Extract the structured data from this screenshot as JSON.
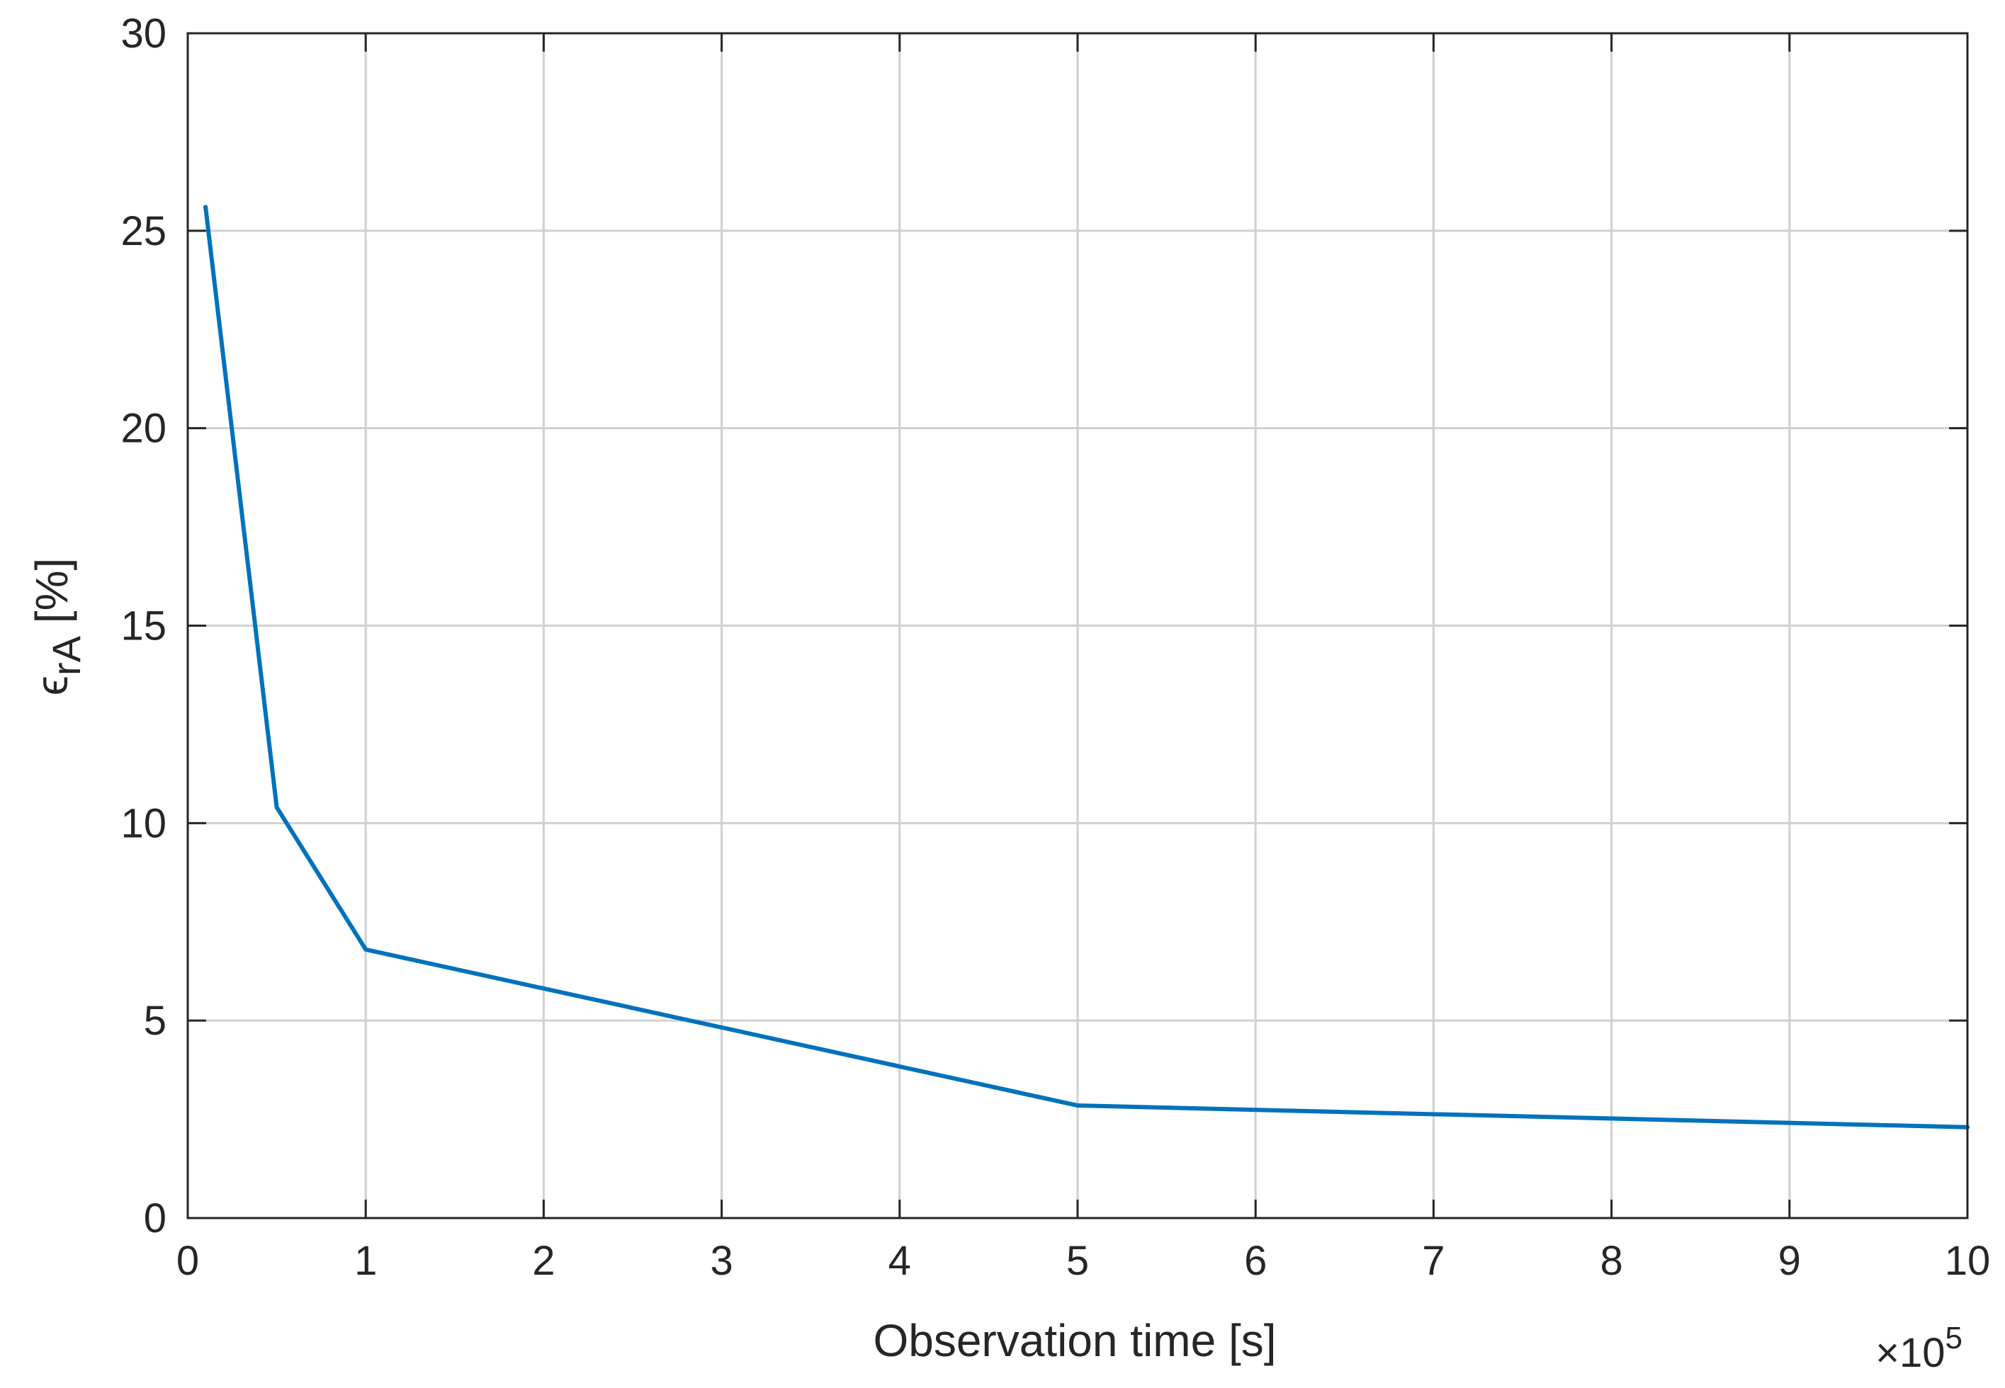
{
  "chart_data": {
    "type": "line",
    "title": "",
    "xlabel": "Observation time [s]",
    "ylabel_base": "ϵ",
    "ylabel_sub": "rA",
    "ylabel_suffix": " [%]",
    "x_exponent_label": "×10",
    "x_exponent": "5",
    "x_multiplier": 100000,
    "xlim": [
      0,
      10
    ],
    "ylim": [
      0,
      30
    ],
    "xticks": [
      0,
      1,
      2,
      3,
      4,
      5,
      6,
      7,
      8,
      9,
      10
    ],
    "yticks": [
      0,
      5,
      10,
      15,
      20,
      25,
      30
    ],
    "grid": true,
    "line_color": "#0072BD",
    "series": [
      {
        "x": [
          0.1,
          0.5,
          1,
          5,
          10
        ],
        "y": [
          25.6,
          10.4,
          6.8,
          2.85,
          2.3
        ]
      }
    ]
  }
}
